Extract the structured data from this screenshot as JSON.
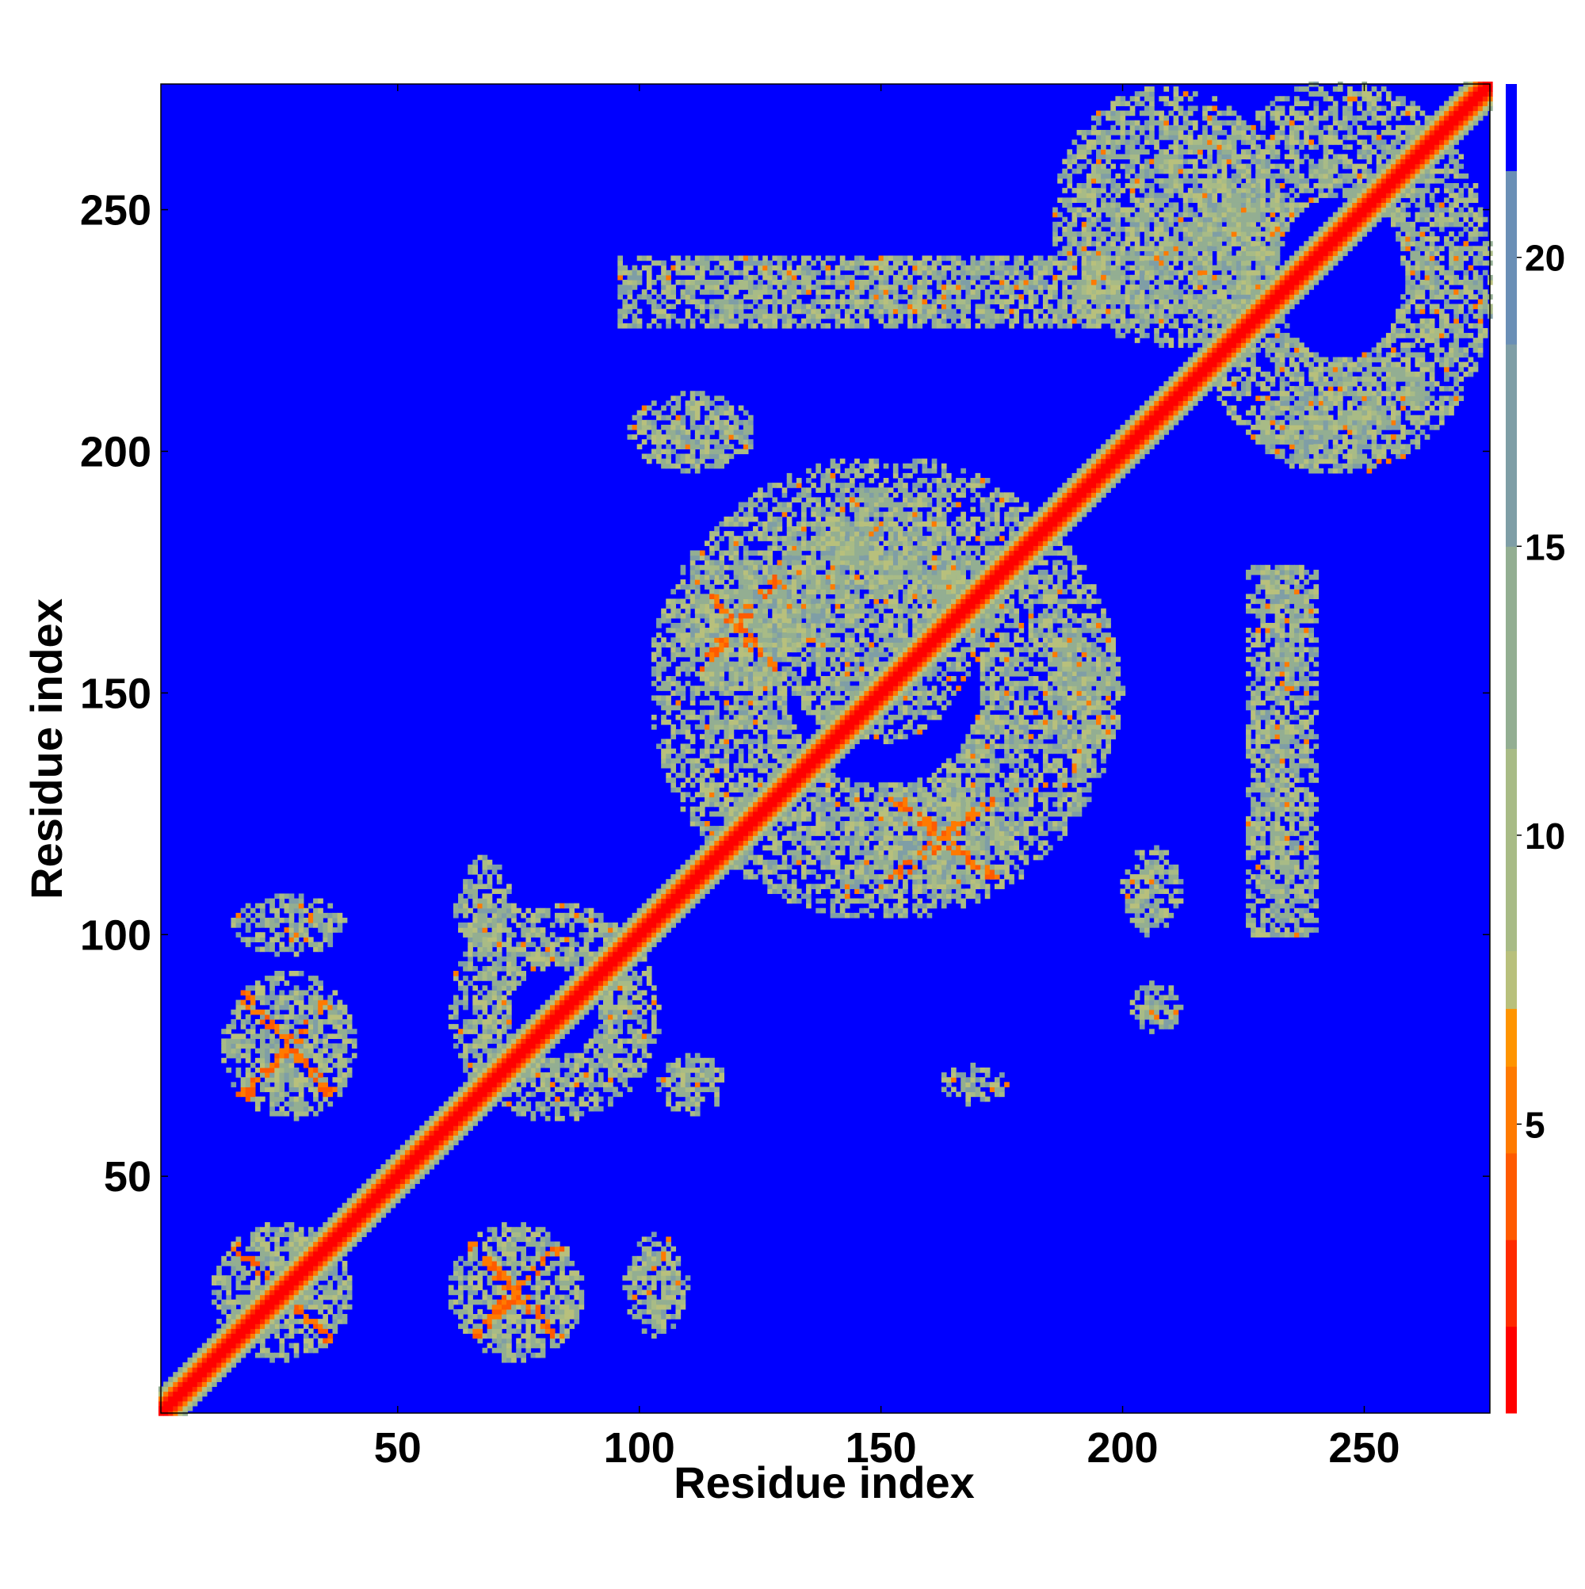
{
  "chart_data": {
    "type": "heatmap",
    "title": "",
    "xlabel": "Residue index",
    "ylabel": "Residue index",
    "xlim": [
      1,
      276
    ],
    "ylim": [
      1,
      276
    ],
    "x_ticks": [
      50,
      100,
      150,
      200,
      250
    ],
    "y_ticks": [
      50,
      100,
      150,
      200,
      250
    ],
    "colorbar": {
      "range": [
        0,
        23
      ],
      "ticks": [
        5,
        10,
        15,
        20
      ],
      "levels": [
        {
          "from": 0,
          "to": 1.5,
          "color": "#ff0000"
        },
        {
          "from": 1.5,
          "to": 3.0,
          "color": "#ff2a00"
        },
        {
          "from": 3.0,
          "to": 4.5,
          "color": "#ff5a00"
        },
        {
          "from": 4.5,
          "to": 6.0,
          "color": "#ff7a00"
        },
        {
          "from": 6.0,
          "to": 7.0,
          "color": "#ff9400"
        },
        {
          "from": 7.0,
          "to": 8.0,
          "color": "#b8c07c"
        },
        {
          "from": 8.0,
          "to": 11.5,
          "color": "#a8bb86"
        },
        {
          "from": 11.5,
          "to": 15.0,
          "color": "#93ae92"
        },
        {
          "from": 15.0,
          "to": 18.5,
          "color": "#7f9ea6"
        },
        {
          "from": 18.5,
          "to": 21.5,
          "color": "#6a8fb6"
        },
        {
          "from": 21.5,
          "to": 23.0,
          "color": "#0000ff"
        }
      ]
    },
    "background_color": "#0000ff",
    "diagonal": {
      "near_color": "#ff0000",
      "halo_color": "#ff7a00",
      "envelope_color": "#93ae92"
    },
    "contact_regions": [
      {
        "x": [
          12,
          40
        ],
        "y": [
          12,
          40
        ],
        "kind": "cross"
      },
      {
        "x": [
          61,
          88
        ],
        "y": [
          12,
          40
        ],
        "kind": "cross"
      },
      {
        "x": [
          97,
          110
        ],
        "y": [
          17,
          38
        ],
        "kind": "blob"
      },
      {
        "x": [
          14,
          41
        ],
        "y": [
          62,
          92
        ],
        "kind": "cross"
      },
      {
        "x": [
          16,
          39
        ],
        "y": [
          96,
          108
        ],
        "kind": "blob"
      },
      {
        "x": [
          61,
          104
        ],
        "y": [
          62,
          106
        ],
        "kind": "ring"
      },
      {
        "x": [
          62,
          74
        ],
        "y": [
          95,
          116
        ],
        "kind": "blob"
      },
      {
        "x": [
          104,
          118
        ],
        "y": [
          63,
          75
        ],
        "kind": "blob"
      },
      {
        "x": [
          103,
          198
        ],
        "y": [
          104,
          198
        ],
        "kind": "ring"
      },
      {
        "x": [
          108,
          132
        ],
        "y": [
          150,
          178
        ],
        "kind": "cross"
      },
      {
        "x": [
          148,
          178
        ],
        "y": [
          108,
          132
        ],
        "kind": "cross"
      },
      {
        "x": [
          128,
          170
        ],
        "y": [
          140,
          192
        ],
        "kind": "blob"
      },
      {
        "x": [
          185,
          200
        ],
        "y": [
          135,
          165
        ],
        "kind": "blob"
      },
      {
        "x": [
          200,
          212
        ],
        "y": [
          100,
          118
        ],
        "kind": "blob"
      },
      {
        "x": [
          214,
          276
        ],
        "y": [
          196,
          276
        ],
        "kind": "ring"
      },
      {
        "x": [
          186,
          232
        ],
        "y": [
          222,
          275
        ],
        "kind": "blob"
      },
      {
        "x": [
          228,
          256
        ],
        "y": [
          196,
          214
        ],
        "kind": "blob"
      },
      {
        "x": [
          226,
          240
        ],
        "y": [
          100,
          176
        ],
        "kind": "strip"
      },
      {
        "x": [
          98,
          124
        ],
        "y": [
          196,
          212
        ],
        "kind": "blob"
      },
      {
        "x": [
          96,
          210
        ],
        "y": [
          226,
          240
        ],
        "kind": "strip"
      },
      {
        "x": [
          162,
          176
        ],
        "y": [
          65,
          73
        ],
        "kind": "blob"
      },
      {
        "x": [
          202,
          212
        ],
        "y": [
          80,
          90
        ],
        "kind": "blob"
      }
    ]
  }
}
